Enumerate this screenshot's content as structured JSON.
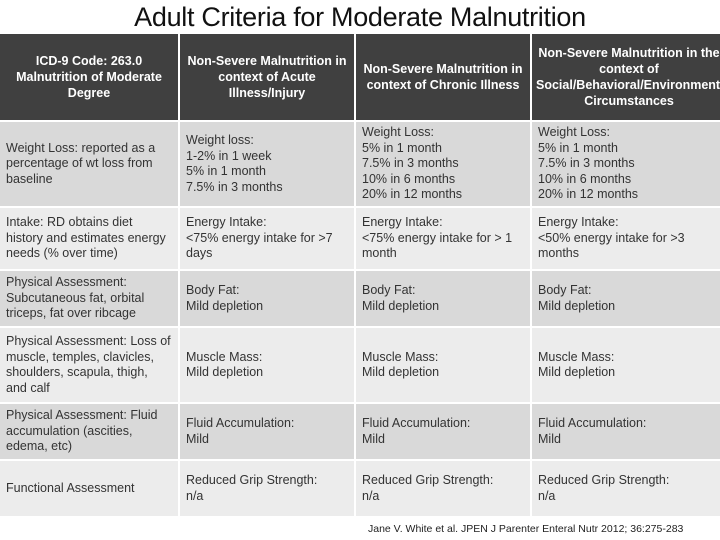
{
  "title": "Adult Criteria for Moderate Malnutrition",
  "headers": [
    "ICD-9 Code: 263.0\nMalnutrition of Moderate Degree",
    "Non-Severe Malnutrition in context of Acute Illness/Injury",
    "Non-Severe Malnutrition in context of Chronic Illness",
    "Non-Severe Malnutrition in the context of Social/Behavioral/Environmental Circumstances"
  ],
  "rows": [
    [
      "Weight Loss: reported as a percentage of wt loss from baseline",
      "Weight loss:\n1-2% in 1 week\n5% in 1 month\n7.5% in 3 months",
      "Weight Loss:\n5% in 1 month\n7.5% in 3 months\n10% in 6 months\n20% in 12 months",
      "Weight Loss:\n5% in 1 month\n7.5% in 3 months\n10% in 6 months\n20% in 12 months"
    ],
    [
      "Intake: RD obtains diet history and estimates energy needs (% over time)",
      "Energy Intake:\n<75% energy intake for >7 days",
      "Energy Intake:\n<75% energy intake for > 1 month",
      "Energy Intake:\n<50% energy intake for >3 months"
    ],
    [
      "Physical Assessment: Subcutaneous fat, orbital triceps, fat over ribcage",
      "Body Fat:\nMild depletion",
      "Body Fat:\nMild depletion",
      "Body Fat:\nMild depletion"
    ],
    [
      "Physical Assessment: Loss of muscle, temples, clavicles, shoulders, scapula, thigh, and calf",
      "Muscle Mass:\nMild depletion",
      "Muscle Mass:\nMild depletion",
      "Muscle Mass:\nMild depletion"
    ],
    [
      "Physical Assessment: Fluid accumulation (ascities, edema, etc)",
      "Fluid Accumulation:\nMild",
      "Fluid Accumulation:\nMild",
      "Fluid Accumulation:\nMild"
    ],
    [
      "Functional Assessment",
      "Reduced Grip Strength:\nn/a",
      "Reduced Grip Strength:\nn/a",
      "Reduced Grip Strength:\nn/a"
    ]
  ],
  "citation": "Jane V. White et al. JPEN J Parenter Enteral Nutr 2012; 36:275-283"
}
